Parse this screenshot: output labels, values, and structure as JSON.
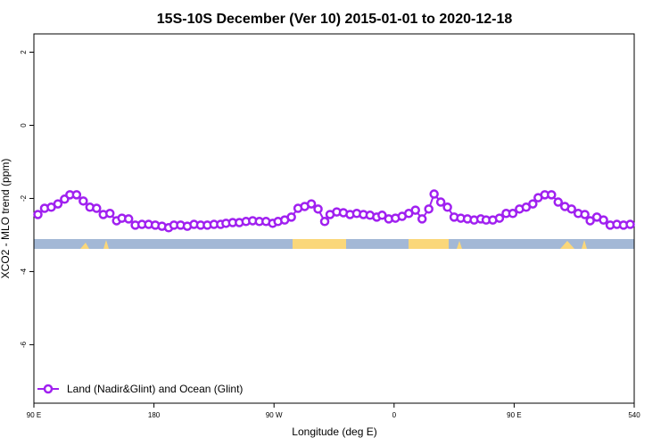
{
  "chart_data": {
    "type": "line",
    "title": "15S-10S December (Ver 10)   2015-01-01 to 2020-12-18",
    "x_label": "Longitude (deg E)",
    "y_label": "XCO2 - MLO trend (ppm)",
    "x": [
      93,
      98,
      103,
      108,
      113,
      117,
      122,
      127,
      132,
      137,
      142,
      147,
      152,
      156,
      161,
      166,
      171,
      176,
      181,
      186,
      191,
      195,
      200,
      205,
      210,
      215,
      220,
      225,
      230,
      234,
      239,
      244,
      249,
      254,
      259,
      264,
      269,
      273,
      278,
      283,
      288,
      293,
      298,
      303,
      308,
      312,
      317,
      322,
      327,
      332,
      337,
      342,
      347,
      351,
      356,
      361,
      366,
      371,
      376,
      381,
      386,
      390,
      395,
      400,
      405,
      410,
      415,
      420,
      425,
      429,
      434,
      439,
      444,
      449,
      454,
      459,
      464,
      468,
      473,
      478,
      483,
      488,
      493,
      498,
      503,
      507,
      512,
      517,
      522,
      527,
      532,
      537
    ],
    "series": [
      {
        "name": "Land (Nadir&Glint) and Ocean (Glint)",
        "color": "#a020f0",
        "values": [
          -2.44,
          -2.27,
          -2.24,
          -2.15,
          -2.02,
          -1.9,
          -1.9,
          -2.07,
          -2.24,
          -2.27,
          -2.44,
          -2.41,
          -2.61,
          -2.54,
          -2.56,
          -2.73,
          -2.71,
          -2.71,
          -2.73,
          -2.76,
          -2.8,
          -2.73,
          -2.73,
          -2.76,
          -2.71,
          -2.73,
          -2.73,
          -2.71,
          -2.71,
          -2.68,
          -2.66,
          -2.66,
          -2.63,
          -2.61,
          -2.63,
          -2.63,
          -2.68,
          -2.63,
          -2.59,
          -2.51,
          -2.27,
          -2.22,
          -2.15,
          -2.29,
          -2.63,
          -2.44,
          -2.37,
          -2.39,
          -2.44,
          -2.41,
          -2.44,
          -2.46,
          -2.51,
          -2.46,
          -2.56,
          -2.54,
          -2.49,
          -2.41,
          -2.32,
          -2.56,
          -2.29,
          -1.88,
          -2.1,
          -2.24,
          -2.51,
          -2.54,
          -2.56,
          -2.59,
          -2.56,
          -2.59,
          -2.59,
          -2.54,
          -2.41,
          -2.41,
          -2.29,
          -2.24,
          -2.15,
          -1.98,
          -1.9,
          -1.9,
          -2.1,
          -2.22,
          -2.29,
          -2.41,
          -2.44,
          -2.61,
          -2.51,
          -2.59,
          -2.73,
          -2.71,
          -2.73,
          -2.71
        ]
      }
    ],
    "xlim": [
      90,
      540
    ],
    "xticks": [
      {
        "value": 90,
        "label": "90 E"
      },
      180,
      {
        "value": 270,
        "label": "90 W"
      },
      {
        "value": 360,
        "label": "0"
      },
      {
        "value": 450,
        "label": "90 E"
      },
      540
    ],
    "ylim": [
      -7.6,
      2.5
    ],
    "yticks": [
      2,
      0,
      -2,
      -4,
      -6
    ],
    "legend": "bottom-left"
  }
}
